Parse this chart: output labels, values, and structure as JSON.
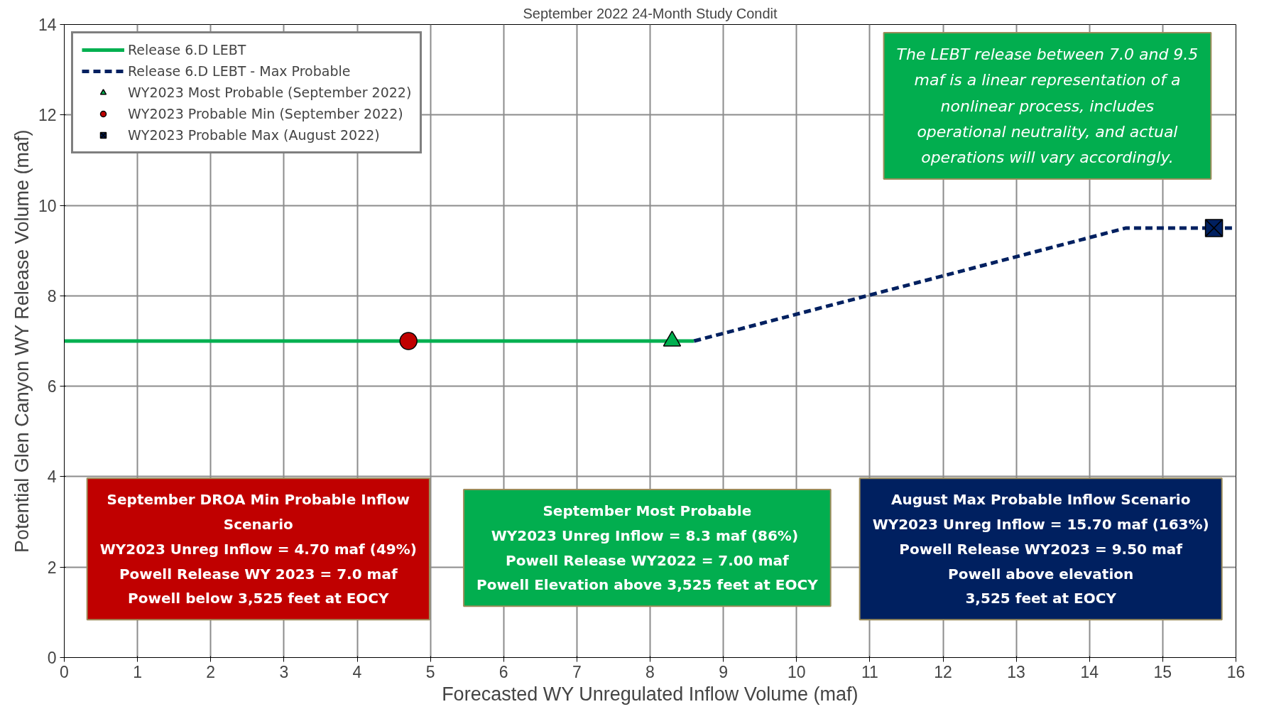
{
  "chart_data": {
    "type": "line",
    "title": "September 2022 24-Month Study Condit",
    "xlabel": "Forecasted WY Unregulated Inflow Volume (maf)",
    "ylabel": "Potential Glen Canyon WY Release Volume (maf)",
    "xlim": [
      0,
      16
    ],
    "ylim": [
      0,
      14
    ],
    "xticks": [
      0,
      1,
      2,
      3,
      4,
      5,
      6,
      7,
      8,
      9,
      10,
      11,
      12,
      13,
      14,
      15,
      16
    ],
    "yticks": [
      0,
      2,
      4,
      6,
      8,
      10,
      12,
      14
    ],
    "grid": true,
    "legend": "top left",
    "series": [
      {
        "name": "Release 6.D LEBT",
        "color": "#00b050",
        "line_style": "solid",
        "marker": "none",
        "x": [
          0,
          8.6
        ],
        "values": [
          7.0,
          7.0
        ]
      },
      {
        "name": "Release 6.D LEBT - Max Probable",
        "color": "#002060",
        "line_style": "dashed",
        "marker": "none",
        "x": [
          8.6,
          14.5,
          16
        ],
        "values": [
          7.0,
          9.5,
          9.5
        ]
      },
      {
        "name": "WY2023 Most Probable (September 2022)",
        "type": "scatter",
        "color": "#00b050",
        "marker": "triangle",
        "x": [
          8.3
        ],
        "values": [
          7.0
        ]
      },
      {
        "name": "WY2023 Probable Min (September 2022)",
        "type": "scatter",
        "color": "#c00000",
        "marker": "circle",
        "x": [
          4.7
        ],
        "values": [
          7.0
        ]
      },
      {
        "name": "WY2023 Probable Max (August 2022)",
        "type": "scatter",
        "color": "#002060",
        "marker": "square",
        "x": [
          15.7
        ],
        "values": [
          9.5
        ]
      }
    ],
    "annotations": [
      "The LEBT release between 7.0 and 9.5\nmaf is a linear representation of a\nnonlinear process, includes\noperational neutrality, and actual\noperations will vary accordingly.",
      "September DROA Min Probable Inflow\nScenario\nWY2023 Unreg Inflow = 4.70 maf (49%)\nPowell Release WY 2023 = 7.0 maf\nPowell below 3,525 feet at EOCY",
      "September Most Probable\nWY2023 Unreg Inflow = 8.3 maf  (86%)\nPowell Release WY2022 = 7.00 maf\nPowell Elevation above 3,525 feet at EOCY",
      "August Max Probable Inflow Scenario\nWY2023 Unreg Inflow = 15.70 maf (163%)\nPowell Release WY2023 = 9.50 maf\nPowell above elevation\n3,525 feet at EOCY"
    ]
  }
}
